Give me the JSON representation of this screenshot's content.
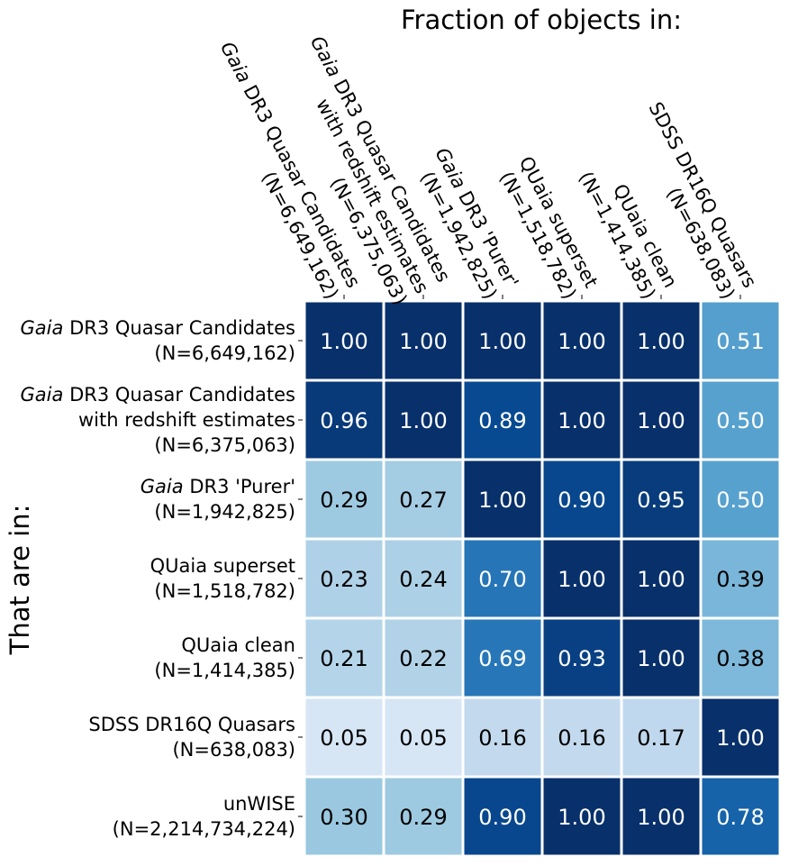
{
  "chart_data": {
    "type": "heatmap",
    "title": "Fraction of objects in:",
    "ylabel": "That are in:",
    "xlabel": "",
    "colormap": "Blues",
    "value_range": [
      0,
      1
    ],
    "gridlines": "white",
    "columns": [
      {
        "prefix": "",
        "italic": "Gaia",
        "rest": " DR3 Quasar Candidates",
        "second": "",
        "count": "(N=6,649,162)"
      },
      {
        "prefix": "",
        "italic": "Gaia",
        "rest": " DR3 Quasar Candidates",
        "second": "with redshift estimates",
        "count": "(N=6,375,063)"
      },
      {
        "prefix": "",
        "italic": "Gaia",
        "rest": " DR3 'Purer'",
        "second": "",
        "count": "(N=1,942,825)"
      },
      {
        "prefix": "QUaia superset",
        "italic": "",
        "rest": "",
        "second": "",
        "count": "(N=1,518,782)"
      },
      {
        "prefix": "QUaia clean",
        "italic": "",
        "rest": "",
        "second": "",
        "count": "(N=1,414,385)"
      },
      {
        "prefix": "SDSS DR16Q Quasars",
        "italic": "",
        "rest": "",
        "second": "",
        "count": "(N=638,083)"
      }
    ],
    "rows": [
      {
        "prefix": "",
        "italic": "Gaia",
        "rest": " DR3 Quasar Candidates",
        "second": "",
        "count": "(N=6,649,162)"
      },
      {
        "prefix": "",
        "italic": "Gaia",
        "rest": " DR3 Quasar Candidates",
        "second": "with redshift estimates",
        "count": "(N=6,375,063)"
      },
      {
        "prefix": "",
        "italic": "Gaia",
        "rest": " DR3 'Purer'",
        "second": "",
        "count": "(N=1,942,825)"
      },
      {
        "prefix": "QUaia superset",
        "italic": "",
        "rest": "",
        "second": "",
        "count": "(N=1,518,782)"
      },
      {
        "prefix": "QUaia clean",
        "italic": "",
        "rest": "",
        "second": "",
        "count": "(N=1,414,385)"
      },
      {
        "prefix": "SDSS DR16Q Quasars",
        "italic": "",
        "rest": "",
        "second": "",
        "count": "(N=638,083)"
      },
      {
        "prefix": "unWISE",
        "italic": "",
        "rest": "",
        "second": "",
        "count": "(N=2,214,734,224)"
      }
    ],
    "values": [
      [
        1.0,
        1.0,
        1.0,
        1.0,
        1.0,
        0.51
      ],
      [
        0.96,
        1.0,
        0.89,
        1.0,
        1.0,
        0.5
      ],
      [
        0.29,
        0.27,
        1.0,
        0.9,
        0.95,
        0.5
      ],
      [
        0.23,
        0.24,
        0.7,
        1.0,
        1.0,
        0.39
      ],
      [
        0.21,
        0.22,
        0.69,
        0.93,
        1.0,
        0.38
      ],
      [
        0.05,
        0.05,
        0.16,
        0.16,
        0.17,
        1.0
      ],
      [
        0.3,
        0.29,
        0.9,
        1.0,
        1.0,
        0.78
      ]
    ]
  }
}
